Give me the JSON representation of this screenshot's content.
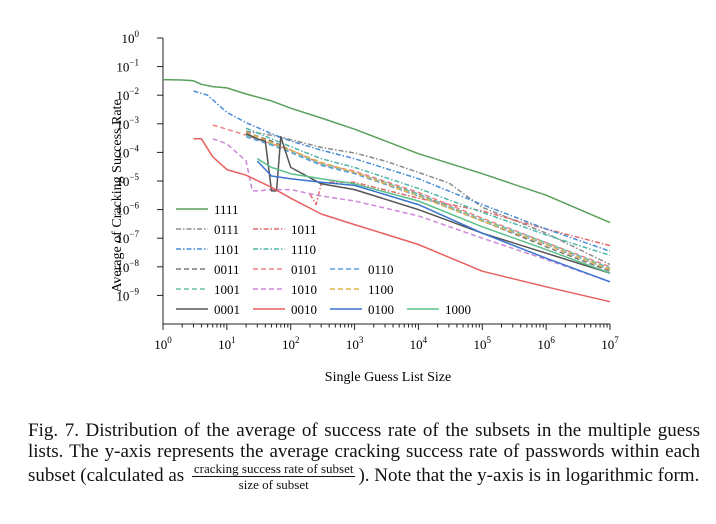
{
  "chart_data": {
    "type": "line",
    "xlabel": "Single Guess List Size",
    "ylabel": "Average of Cracking Success Rate",
    "xscale": "log",
    "yscale": "log",
    "xlim": [
      1,
      10000000
    ],
    "ylim": [
      1e-10,
      1
    ],
    "x_ticks": [
      {
        "base": "10",
        "exp": "0"
      },
      {
        "base": "10",
        "exp": "1"
      },
      {
        "base": "10",
        "exp": "2"
      },
      {
        "base": "10",
        "exp": "3"
      },
      {
        "base": "10",
        "exp": "4"
      },
      {
        "base": "10",
        "exp": "5"
      },
      {
        "base": "10",
        "exp": "6"
      },
      {
        "base": "10",
        "exp": "7"
      }
    ],
    "y_ticks": [
      {
        "base": "10",
        "exp": "0"
      },
      {
        "base": "10",
        "exp": "−1"
      },
      {
        "base": "10",
        "exp": "−2"
      },
      {
        "base": "10",
        "exp": "−3"
      },
      {
        "base": "10",
        "exp": "−4"
      },
      {
        "base": "10",
        "exp": "−5"
      },
      {
        "base": "10",
        "exp": "−6"
      },
      {
        "base": "10",
        "exp": "−7"
      },
      {
        "base": "10",
        "exp": "−8"
      },
      {
        "base": "10",
        "exp": "−9"
      }
    ],
    "legend_position": "bottom-left",
    "series": [
      {
        "name": "1111",
        "color": "#5aa05a",
        "dash": "solid",
        "x": [
          1,
          2,
          3,
          4,
          6,
          10,
          20,
          50,
          100,
          300,
          1000,
          10000,
          100000,
          1000000,
          10000000
        ],
        "y": [
          0.035,
          0.034,
          0.032,
          0.024,
          0.02,
          0.018,
          0.011,
          0.0063,
          0.0035,
          0.0016,
          0.00065,
          9e-05,
          1.8e-05,
          3.2e-06,
          3.5e-07
        ]
      },
      {
        "name": "0111",
        "color": "#8a8a8a",
        "dash": "dashdot",
        "x": [
          20,
          50,
          100,
          300,
          1000,
          3000,
          10000,
          30000,
          100000,
          1000000,
          10000000
        ],
        "y": [
          0.00055,
          0.0004,
          0.00028,
          0.00015,
          9.5e-05,
          5e-05,
          2e-05,
          8.5e-06,
          1.2e-06,
          1.5e-07,
          1.2e-08
        ]
      },
      {
        "name": "1011",
        "color": "#e26a6a",
        "dash": "dashdot",
        "x": [
          200,
          250,
          300,
          400,
          1000,
          10000,
          100000,
          1000000,
          10000000
        ],
        "y": [
          3.5e-06,
          1.5e-06,
          8e-06,
          9e-06,
          9e-06,
          2.5e-06,
          9e-07,
          2.1e-07,
          5.5e-08
        ]
      },
      {
        "name": "1101",
        "color": "#4a8ed8",
        "dash": "dashdot",
        "x": [
          3,
          5,
          10,
          20,
          50,
          100,
          300,
          1000,
          10000,
          100000,
          1000000,
          10000000
        ],
        "y": [
          0.014,
          0.01,
          0.0025,
          0.0011,
          0.00045,
          0.00025,
          0.00012,
          6e-05,
          1.2e-05,
          1.5e-06,
          2.1e-07,
          3.5e-08
        ]
      },
      {
        "name": "1110",
        "color": "#4fb7a8",
        "dash": "dashdot",
        "x": [
          20,
          50,
          100,
          300,
          1000,
          10000,
          100000,
          1000000,
          10000000
        ],
        "y": [
          0.0007,
          0.0003,
          0.00016,
          6e-05,
          3e-05,
          5.5e-06,
          8e-07,
          1.3e-07,
          2.5e-08
        ]
      },
      {
        "name": "0011",
        "color": "#7a7a7a",
        "dash": "dashed",
        "x": [
          20,
          50,
          100,
          300,
          1000,
          10000,
          100000,
          1000000,
          10000000
        ],
        "y": [
          0.0005,
          0.00025,
          0.00012,
          4e-05,
          2e-05,
          3.5e-06,
          4e-07,
          5e-08,
          7e-09
        ]
      },
      {
        "name": "0101",
        "color": "#f08080",
        "dash": "dashed",
        "x": [
          6,
          10,
          20,
          50,
          100,
          300,
          1000,
          10000,
          100000,
          1000000,
          10000000
        ],
        "y": [
          0.0009,
          0.00065,
          0.0004,
          0.0002,
          0.00012,
          4e-05,
          2.2e-05,
          4e-06,
          5e-07,
          7e-08,
          1e-08
        ]
      },
      {
        "name": "0110",
        "color": "#5a9ee0",
        "dash": "dashed",
        "x": [
          20,
          50,
          100,
          300,
          1000,
          10000,
          100000,
          1000000,
          10000000
        ],
        "y": [
          0.00035,
          0.00018,
          0.0001,
          3.5e-05,
          1.8e-05,
          3e-06,
          4e-07,
          6e-08,
          8e-09
        ]
      },
      {
        "name": "1001",
        "color": "#6fc0b0",
        "dash": "dashed",
        "x": [
          20,
          50,
          100,
          300,
          1000,
          10000,
          100000,
          1000000,
          10000000
        ],
        "y": [
          0.0004,
          0.0002,
          0.00011,
          4e-05,
          2e-05,
          3.5e-06,
          4.5e-07,
          7e-08,
          9e-09
        ]
      },
      {
        "name": "1010",
        "color": "#cc88d8",
        "dash": "dashed",
        "x": [
          6,
          10,
          20,
          25,
          30,
          50,
          100,
          300,
          1000,
          10000,
          100000,
          1000000,
          10000000
        ],
        "y": [
          0.0003,
          0.0002,
          5e-05,
          4.5e-06,
          4.5e-06,
          5e-06,
          5e-06,
          3e-06,
          2e-06,
          6e-07,
          1e-07,
          1.8e-08,
          3e-09
        ]
      },
      {
        "name": "1100",
        "color": "#e3b04a",
        "dash": "dashed",
        "x": [
          20,
          50,
          100,
          300,
          1000,
          10000,
          100000,
          1000000,
          10000000
        ],
        "y": [
          0.0005,
          0.00022,
          0.00012,
          4.5e-05,
          2e-05,
          3e-06,
          4e-07,
          6e-08,
          8e-09
        ]
      },
      {
        "name": "0001",
        "color": "#555555",
        "dash": "solid",
        "x": [
          20,
          30,
          40,
          50,
          55,
          60,
          70,
          100,
          300,
          1000,
          10000,
          100000,
          1000000,
          10000000
        ],
        "y": [
          0.00045,
          0.0003,
          0.00025,
          4.5e-06,
          4.5e-06,
          4.5e-06,
          0.00035,
          3e-05,
          8e-06,
          5e-06,
          1e-06,
          1.5e-07,
          3e-08,
          6e-09
        ]
      },
      {
        "name": "0010",
        "color": "#e86060",
        "dash": "solid",
        "x": [
          3,
          4,
          6,
          10,
          20,
          50,
          100,
          300,
          1000,
          10000,
          100000,
          1000000,
          10000000
        ],
        "y": [
          0.0003,
          0.0003,
          7e-05,
          2.5e-05,
          1.6e-05,
          6e-06,
          2.5e-06,
          7e-07,
          3e-07,
          6e-08,
          7e-09,
          2e-09,
          6e-10
        ]
      },
      {
        "name": "0100",
        "color": "#3a74d0",
        "dash": "solid",
        "x": [
          30,
          50,
          100,
          300,
          1000,
          10000,
          100000,
          1000000,
          10000000
        ],
        "y": [
          5e-05,
          1.5e-05,
          1.2e-05,
          9e-06,
          7e-06,
          1.5e-06,
          1.5e-07,
          2e-08,
          3e-09
        ]
      },
      {
        "name": "1000",
        "color": "#5cc08a",
        "dash": "solid",
        "x": [
          30,
          50,
          100,
          300,
          1000,
          10000,
          100000,
          1000000,
          10000000
        ],
        "y": [
          6e-05,
          3e-05,
          1.8e-05,
          1.2e-05,
          8e-06,
          2e-06,
          2.5e-07,
          4e-08,
          6e-09
        ]
      }
    ]
  },
  "caption": {
    "lead": "Fig. 7.  Distribution of the average of success rate of the subsets in the multiple guess lists. The y-axis represents the average cracking success rate of passwords within each subset (calculated as",
    "frac_num": "cracking success rate of subset",
    "frac_den": "size of subset",
    "tail": "). Note that the y-axis is in logarithmic form."
  }
}
